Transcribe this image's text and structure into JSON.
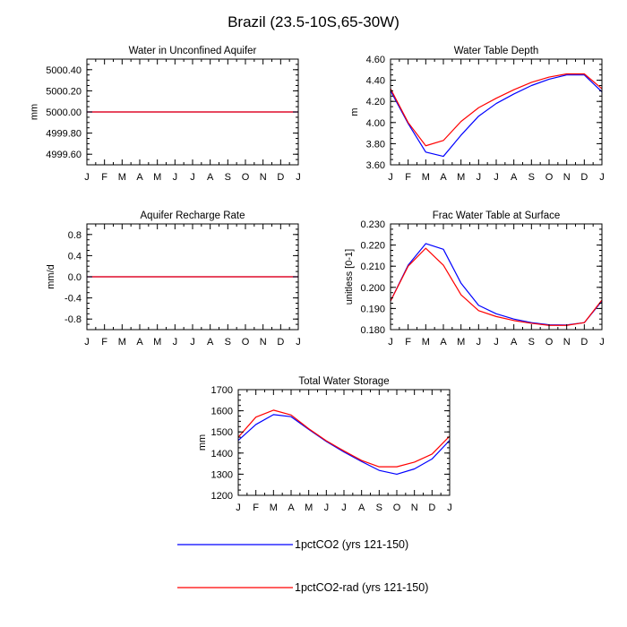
{
  "figure": {
    "title": "Brazil (23.5-10S,65-30W)"
  },
  "legend": {
    "entries": [
      {
        "label": "1pctCO2 (yrs 121-150)",
        "color": "#0000ff"
      },
      {
        "label": "1pctCO2-rad (yrs 121-150)",
        "color": "#ff0000"
      }
    ]
  },
  "chart_data": [
    {
      "id": "water-unconfined",
      "type": "line",
      "title": "Water in Unconfined Aquifer",
      "ylabel": "mm",
      "xlabel": "",
      "x": [
        "J",
        "F",
        "M",
        "A",
        "M",
        "J",
        "J",
        "A",
        "S",
        "O",
        "N",
        "D",
        "J"
      ],
      "ylim": [
        4999.5,
        5000.5
      ],
      "yticks": [
        4999.6,
        4999.8,
        5000.0,
        5000.2,
        5000.4
      ],
      "ytick_labels": [
        "4999.60",
        "4999.80",
        "5000.00",
        "5000.20",
        "5000.40"
      ],
      "series": [
        {
          "name": "1pctCO2 (yrs 121-150)",
          "color": "#0000ff",
          "values": [
            5000,
            5000,
            5000,
            5000,
            5000,
            5000,
            5000,
            5000,
            5000,
            5000,
            5000,
            5000,
            5000
          ]
        },
        {
          "name": "1pctCO2-rad (yrs 121-150)",
          "color": "#ff0000",
          "values": [
            5000,
            5000,
            5000,
            5000,
            5000,
            5000,
            5000,
            5000,
            5000,
            5000,
            5000,
            5000,
            5000
          ]
        }
      ]
    },
    {
      "id": "water-table-depth",
      "type": "line",
      "title": "Water Table Depth",
      "ylabel": "m",
      "xlabel": "",
      "x": [
        "J",
        "F",
        "M",
        "A",
        "M",
        "J",
        "J",
        "A",
        "S",
        "O",
        "N",
        "D",
        "J"
      ],
      "ylim": [
        3.6,
        4.6
      ],
      "yticks": [
        3.6,
        3.8,
        4.0,
        4.2,
        4.4,
        4.6
      ],
      "ytick_labels": [
        "3.60",
        "3.80",
        "4.00",
        "4.20",
        "4.40",
        "4.60"
      ],
      "series": [
        {
          "name": "1pctCO2 (yrs 121-150)",
          "color": "#0000ff",
          "values": [
            4.3,
            3.99,
            3.72,
            3.68,
            3.88,
            4.06,
            4.18,
            4.27,
            4.35,
            4.41,
            4.45,
            4.45,
            4.29
          ]
        },
        {
          "name": "1pctCO2-rad (yrs 121-150)",
          "color": "#ff0000",
          "values": [
            4.32,
            4.0,
            3.78,
            3.83,
            4.01,
            4.14,
            4.23,
            4.31,
            4.38,
            4.43,
            4.46,
            4.46,
            4.32
          ]
        }
      ]
    },
    {
      "id": "aquifer-recharge",
      "type": "line",
      "title": "Aquifer Recharge Rate",
      "ylabel": "mm/d",
      "xlabel": "",
      "x": [
        "J",
        "F",
        "M",
        "A",
        "M",
        "J",
        "J",
        "A",
        "S",
        "O",
        "N",
        "D",
        "J"
      ],
      "ylim": [
        -1.0,
        1.0
      ],
      "yticks": [
        -0.8,
        -0.4,
        0.0,
        0.4,
        0.8
      ],
      "ytick_labels": [
        "-0.8",
        "-0.4",
        "0.0",
        "0.4",
        "0.8"
      ],
      "series": [
        {
          "name": "1pctCO2 (yrs 121-150)",
          "color": "#0000ff",
          "values": [
            0,
            0,
            0,
            0,
            0,
            0,
            0,
            0,
            0,
            0,
            0,
            0,
            0
          ]
        },
        {
          "name": "1pctCO2-rad (yrs 121-150)",
          "color": "#ff0000",
          "values": [
            0,
            0,
            0,
            0,
            0,
            0,
            0,
            0,
            0,
            0,
            0,
            0,
            0
          ]
        }
      ]
    },
    {
      "id": "frac-water-table",
      "type": "line",
      "title": "Frac Water Table at Surface",
      "ylabel": "unitless [0-1]",
      "xlabel": "",
      "x": [
        "J",
        "F",
        "M",
        "A",
        "M",
        "J",
        "J",
        "A",
        "S",
        "O",
        "N",
        "D",
        "J"
      ],
      "ylim": [
        0.18,
        0.23
      ],
      "yticks": [
        0.18,
        0.19,
        0.2,
        0.21,
        0.22,
        0.23
      ],
      "ytick_labels": [
        "0.180",
        "0.190",
        "0.200",
        "0.210",
        "0.220",
        "0.230"
      ],
      "series": [
        {
          "name": "1pctCO2 (yrs 121-150)",
          "color": "#0000ff",
          "values": [
            0.1935,
            0.2105,
            0.2207,
            0.218,
            0.202,
            0.1915,
            0.1875,
            0.185,
            0.1833,
            0.1823,
            0.1822,
            0.1833,
            0.1935
          ]
        },
        {
          "name": "1pctCO2-rad (yrs 121-150)",
          "color": "#ff0000",
          "values": [
            0.1935,
            0.21,
            0.2185,
            0.2105,
            0.1965,
            0.189,
            0.1862,
            0.1843,
            0.183,
            0.182,
            0.182,
            0.1833,
            0.194
          ]
        }
      ]
    },
    {
      "id": "total-water-storage",
      "type": "line",
      "title": "Total Water Storage",
      "ylabel": "mm",
      "xlabel": "",
      "x": [
        "J",
        "F",
        "M",
        "A",
        "M",
        "J",
        "J",
        "A",
        "S",
        "O",
        "N",
        "D",
        "J"
      ],
      "ylim": [
        1200,
        1700
      ],
      "yticks": [
        1200,
        1300,
        1400,
        1500,
        1600,
        1700
      ],
      "ytick_labels": [
        "1200",
        "1300",
        "1400",
        "1500",
        "1600",
        "1700"
      ],
      "series": [
        {
          "name": "1pctCO2 (yrs 121-150)",
          "color": "#0000ff",
          "values": [
            1460,
            1535,
            1582,
            1572,
            1512,
            1455,
            1405,
            1360,
            1318,
            1300,
            1325,
            1372,
            1460
          ]
        },
        {
          "name": "1pctCO2-rad (yrs 121-150)",
          "color": "#ff0000",
          "values": [
            1475,
            1570,
            1603,
            1580,
            1515,
            1458,
            1410,
            1365,
            1335,
            1335,
            1357,
            1395,
            1480
          ]
        }
      ]
    }
  ]
}
